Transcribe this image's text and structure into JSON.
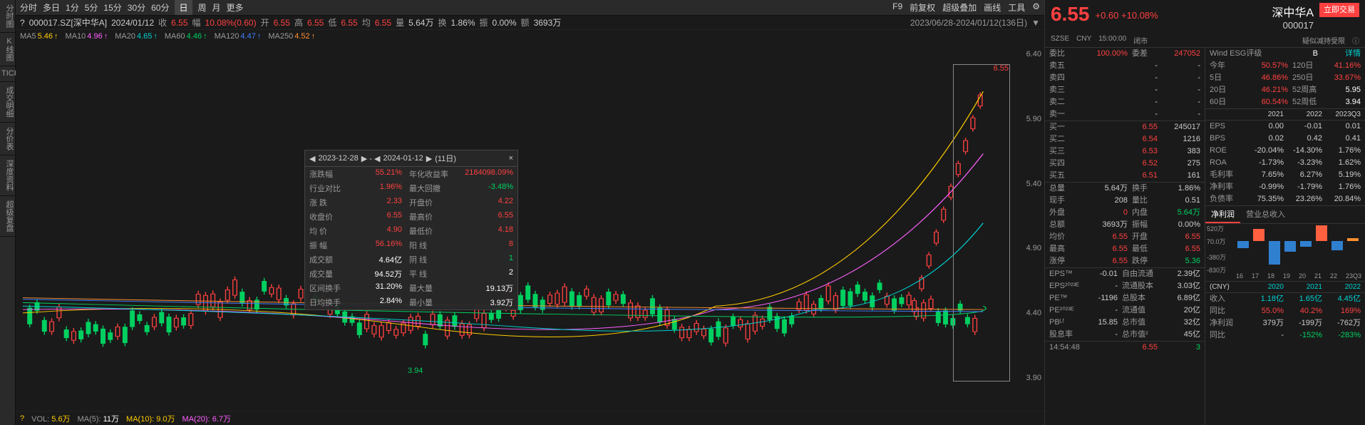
{
  "toolbar": {
    "items": [
      "分时",
      "多日",
      "1分",
      "5分",
      "15分",
      "30分",
      "60分",
      "日",
      "周",
      "月",
      "更多"
    ],
    "active_idx": 7,
    "right": [
      "F9",
      "前复权",
      "超级叠加",
      "画线",
      "工具"
    ]
  },
  "info": {
    "question": "?",
    "code": "000017.SZ[深中华A]",
    "date": "2024/01/12",
    "close_lbl": "收",
    "close": "6.55",
    "pct_lbl": "幅",
    "pct": "10.08%(0.60)",
    "open_lbl": "开",
    "open": "6.55",
    "high_lbl": "高",
    "high": "6.55",
    "low_lbl": "低",
    "low": "6.55",
    "avg_lbl": "均",
    "avg": "6.55",
    "vol_lbl": "量",
    "vol": "5.64万",
    "turn_lbl": "换",
    "turn": "1.86%",
    "amp_lbl": "振",
    "amp": "0.00%",
    "amt_lbl": "额",
    "amt": "3693万",
    "range": "2023/06/28-2024/01/12(136日)"
  },
  "ma": {
    "ma5": {
      "label": "MA5",
      "value": "5.46",
      "color": "#ffcc00",
      "arrow": "↑"
    },
    "ma10": {
      "label": "MA10",
      "value": "4.96",
      "color": "#ff60ff",
      "arrow": "↑"
    },
    "ma20": {
      "label": "MA20",
      "value": "4.65",
      "color": "#00d0d0",
      "arrow": "↑"
    },
    "ma60": {
      "label": "MA60",
      "value": "4.46",
      "color": "#00d060",
      "arrow": "↑"
    },
    "ma120": {
      "label": "MA120",
      "value": "4.47",
      "color": "#4080ff",
      "arrow": "↑"
    },
    "ma250": {
      "label": "MA250",
      "value": "4.52",
      "color": "#ff9030",
      "arrow": "↑"
    }
  },
  "yaxis": [
    "6.40",
    "5.90",
    "5.40",
    "4.90",
    "4.40",
    "3.90"
  ],
  "markers": {
    "low": "3.94",
    "high": "6.55"
  },
  "tooltip": {
    "d1": "2023-12-28",
    "d2": "2024-01-12",
    "days": "(11日)",
    "rows": [
      {
        "l1": "涨跌幅",
        "v1": "55.21%",
        "c1": "red",
        "l2": "年化收益率",
        "v2": "2184098.09%",
        "c2": "red"
      },
      {
        "l1": "行业对比",
        "v1": "1.96%",
        "c1": "red",
        "l2": "最大回撤",
        "v2": "-3.48%",
        "c2": "green"
      },
      {
        "l1": "涨 跌",
        "v1": "2.33",
        "c1": "red",
        "l2": "开盘价",
        "v2": "4.22",
        "c2": "red"
      },
      {
        "l1": "收盘价",
        "v1": "6.55",
        "c1": "red",
        "l2": "最高价",
        "v2": "6.55",
        "c2": "red"
      },
      {
        "l1": "均 价",
        "v1": "4.90",
        "c1": "red",
        "l2": "最低价",
        "v2": "4.18",
        "c2": "red"
      },
      {
        "l1": "振 幅",
        "v1": "56.16%",
        "c1": "red",
        "l2": "阳 线",
        "v2": "8",
        "c2": "red"
      },
      {
        "l1": "成交额",
        "v1": "4.64亿",
        "c1": "white",
        "l2": "阴 线",
        "v2": "1",
        "c2": "green"
      },
      {
        "l1": "成交量",
        "v1": "94.52万",
        "c1": "white",
        "l2": "平 线",
        "v2": "2",
        "c2": "white"
      },
      {
        "l1": "区间换手",
        "v1": "31.20%",
        "c1": "white",
        "l2": "最大量",
        "v2": "19.13万",
        "c2": "white"
      },
      {
        "l1": "日均换手",
        "v1": "2.84%",
        "c1": "white",
        "l2": "最小量",
        "v2": "3.92万",
        "c2": "white"
      }
    ]
  },
  "vol": {
    "q": "?",
    "label": "VOL:",
    "v": "5.6万",
    "ma5": {
      "l": "MA(5):",
      "v": "11万",
      "c": "white"
    },
    "ma10": {
      "l": "MA(10):",
      "v": "9.0万",
      "c": "yellow"
    },
    "ma20": {
      "l": "MA(20):",
      "v": "6.7万",
      "c": "magenta"
    }
  },
  "left_tabs": [
    "分时图",
    "K线图",
    "TICK",
    "成交明细",
    "分价表",
    "深度资料",
    "超级复盘"
  ],
  "rp": {
    "price": "6.55",
    "chg": "+0.60",
    "pct": "+10.08%",
    "name": "深中华A",
    "code": "000017",
    "trade_btn": "立即交易",
    "sub": {
      "ex": "SZSE",
      "cur": "CNY",
      "time": "15:00:00",
      "status": "闭市",
      "note": "疑似减持受限"
    },
    "ratio": {
      "lbl": "委比",
      "v": "100.00%",
      "lbl2": "委差",
      "v2": "247052"
    },
    "esg": {
      "lbl": "Wind ESG评级",
      "v": "B",
      "link": "详情"
    },
    "asks": [
      {
        "l": "卖五",
        "p": "-",
        "q": "-"
      },
      {
        "l": "卖四",
        "p": "-",
        "q": "-"
      },
      {
        "l": "卖三",
        "p": "-",
        "q": "-"
      },
      {
        "l": "卖二",
        "p": "-",
        "q": "-"
      },
      {
        "l": "卖一",
        "p": "-",
        "q": "-"
      }
    ],
    "bids": [
      {
        "l": "买一",
        "p": "6.55",
        "q": "245017"
      },
      {
        "l": "买二",
        "p": "6.54",
        "q": "1216"
      },
      {
        "l": "买三",
        "p": "6.53",
        "q": "383"
      },
      {
        "l": "买四",
        "p": "6.52",
        "q": "275"
      },
      {
        "l": "买五",
        "p": "6.51",
        "q": "161"
      }
    ],
    "stats": [
      {
        "l": "总量",
        "v": "5.64万",
        "l2": "换手",
        "v2": "1.86%"
      },
      {
        "l": "现手",
        "v": "208",
        "l2": "量比",
        "v2": "0.51"
      },
      {
        "l": "外盘",
        "v": "0",
        "c": "red",
        "l2": "内盘",
        "v2": "5.64万",
        "c2": "green"
      },
      {
        "l": "总额",
        "v": "3693万",
        "l2": "振幅",
        "v2": "0.00%"
      },
      {
        "l": "均价",
        "v": "6.55",
        "c": "red",
        "l2": "开盘",
        "v2": "6.55",
        "c2": "red"
      },
      {
        "l": "最高",
        "v": "6.55",
        "c": "red",
        "l2": "最低",
        "v2": "6.55",
        "c2": "red"
      },
      {
        "l": "涨停",
        "v": "6.55",
        "c": "red",
        "l2": "跌停",
        "v2": "5.36",
        "c2": "green"
      }
    ],
    "eps": [
      {
        "l": "EPS™",
        "v": "-0.01",
        "l2": "自由流通",
        "v2": "2.39亿"
      },
      {
        "l": "EPS²⁰²³ᴱ",
        "v": "-",
        "l2": "流通股本",
        "v2": "3.03亿"
      },
      {
        "l": "PE™",
        "v": "-1196",
        "l2": "总股本",
        "v2": "6.89亿"
      },
      {
        "l": "PE²⁰²³ᴱ",
        "v": "-",
        "l2": "流通值",
        "v2": "20亿"
      },
      {
        "l": "PBᴸᶠ",
        "v": "15.85",
        "l2": "总市值",
        "v2": "32亿"
      },
      {
        "l": "股息率",
        "v": "-",
        "l2": "总市值²",
        "v2": "45亿"
      }
    ],
    "tick": {
      "time": "14:54:48",
      "price": "6.55",
      "vol": "3",
      "c": "green"
    },
    "returns": [
      {
        "l": "今年",
        "v": "50.57%",
        "l2": "120日",
        "v2": "41.16%"
      },
      {
        "l": "5日",
        "v": "46.86%",
        "l2": "250日",
        "v2": "33.67%"
      },
      {
        "l": "20日",
        "v": "46.21%",
        "l2": "52周高",
        "v2": "5.95"
      },
      {
        "l": "60日",
        "v": "60.54%",
        "l2": "52周低",
        "v2": "3.94"
      }
    ],
    "fin_head": [
      "",
      "2021",
      "2022",
      "2023Q3"
    ],
    "fin": [
      {
        "l": "EPS",
        "v": [
          "0.00",
          "-0.01",
          "0.01"
        ]
      },
      {
        "l": "BPS",
        "v": [
          "0.02",
          "0.42",
          "0.41"
        ]
      },
      {
        "l": "ROE",
        "v": [
          "-20.04%",
          "-14.30%",
          "1.76%"
        ]
      },
      {
        "l": "ROA",
        "v": [
          "-1.73%",
          "-3.23%",
          "1.62%"
        ]
      },
      {
        "l": "毛利率",
        "v": [
          "7.65%",
          "6.27%",
          "5.19%"
        ]
      },
      {
        "l": "净利率",
        "v": [
          "-0.99%",
          "-1.79%",
          "1.76%"
        ]
      },
      {
        "l": "负债率",
        "v": [
          "75.35%",
          "23.26%",
          "20.84%"
        ]
      }
    ],
    "chart_tabs": [
      "净利润",
      "营业总收入"
    ],
    "chart_labels": [
      "520万",
      "70.0万",
      "-380万",
      "-830万"
    ],
    "chart_x": [
      "16",
      "17",
      "18",
      "19",
      "20",
      "21",
      "22",
      "23Q3"
    ],
    "chart_bars": [
      -20,
      35,
      -65,
      -30,
      -15,
      45,
      -25,
      8
    ],
    "income_head": [
      "(CNY)",
      "2020",
      "2021",
      "2022"
    ],
    "income": [
      {
        "l": "收入",
        "v": [
          "1.18亿",
          "1.65亿",
          "4.45亿"
        ],
        "c": "cyan"
      },
      {
        "l": "同比",
        "v": [
          "55.0%",
          "40.2%",
          "169%"
        ],
        "c": [
          "red",
          "red",
          "red"
        ]
      },
      {
        "l": "净利润",
        "v": [
          "379万",
          "-199万",
          "-762万"
        ]
      },
      {
        "l": "同比",
        "v": [
          "-",
          "-152%",
          "-283%"
        ],
        "c": [
          "",
          "green",
          "green"
        ]
      }
    ]
  }
}
